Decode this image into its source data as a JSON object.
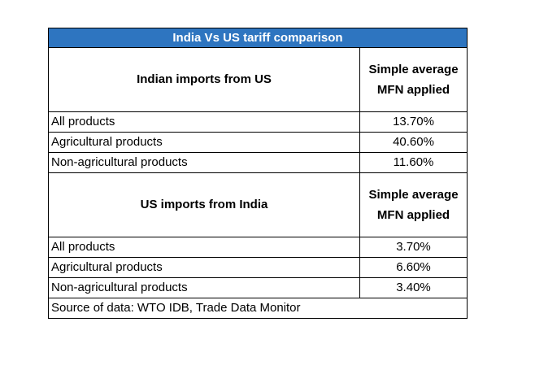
{
  "title": "India Vs US tariff comparison",
  "sections": [
    {
      "heading": "Indian imports from US",
      "column_heading_line1": "Simple average",
      "column_heading_line2": "MFN applied",
      "rows": [
        {
          "label": "All products",
          "value": "13.70%"
        },
        {
          "label": "Agricultural products",
          "value": "40.60%"
        },
        {
          "label": "Non-agricultural products",
          "value": "11.60%"
        }
      ]
    },
    {
      "heading": "US imports from India",
      "column_heading_line1": "Simple average",
      "column_heading_line2": "MFN applied",
      "rows": [
        {
          "label": "All products",
          "value": "3.70%"
        },
        {
          "label": "Agricultural products",
          "value": "6.60%"
        },
        {
          "label": "Non-agricultural products",
          "value": "3.40%"
        }
      ]
    }
  ],
  "source": "Source of data: WTO IDB, Trade Data Monitor",
  "colors": {
    "title_bg": "#2e75c0",
    "title_text": "#ffffff"
  }
}
